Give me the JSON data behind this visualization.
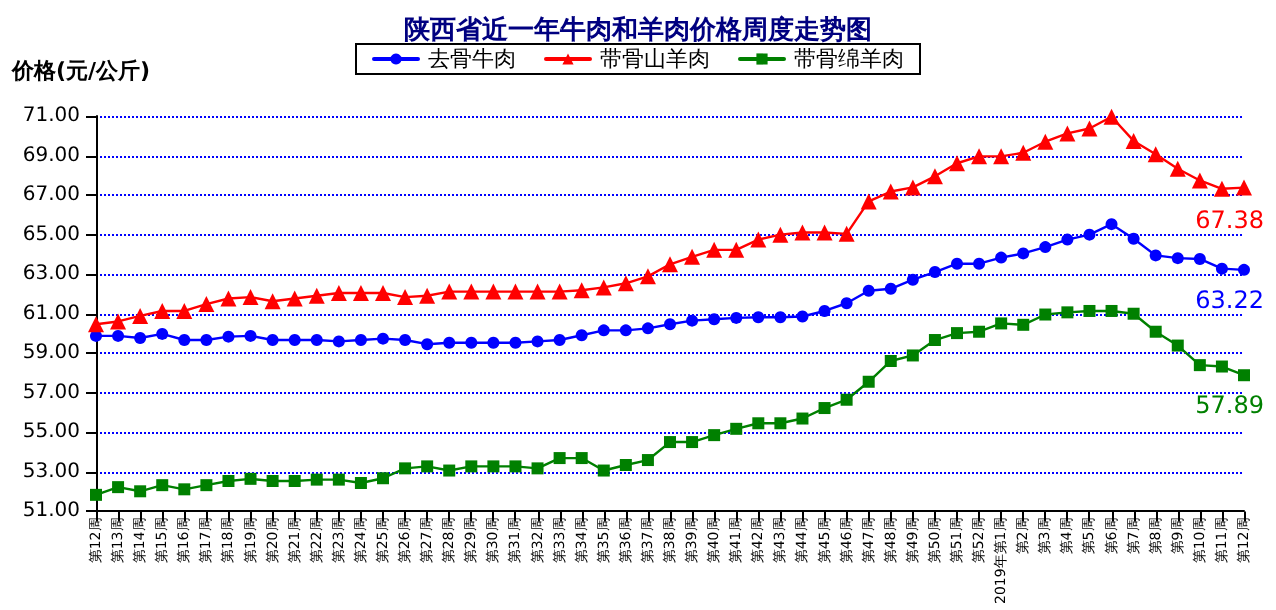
{
  "chart_data": {
    "type": "line",
    "title": "陕西省近一年牛肉和羊肉价格周度走势图",
    "ylabel": "价格(元/公斤)",
    "categories": [
      "第12周",
      "第13周",
      "第14周",
      "第15周",
      "第16周",
      "第17周",
      "第18周",
      "第19周",
      "第20周",
      "第21周",
      "第22周",
      "第23周",
      "第24周",
      "第25周",
      "第26周",
      "第27周",
      "第28周",
      "第29周",
      "第30周",
      "第31周",
      "第32周",
      "第33周",
      "第34周",
      "第35周",
      "第36周",
      "第37周",
      "第38周",
      "第39周",
      "第40周",
      "第41周",
      "第42周",
      "第43周",
      "第44周",
      "第45周",
      "第46周",
      "第47周",
      "第48周",
      "第49周",
      "第50周",
      "第51周",
      "第52周",
      "2019年第1周",
      "第2周",
      "第3周",
      "第4周",
      "第5周",
      "第6周",
      "第7周",
      "第8周",
      "第9周",
      "第10周",
      "第11周",
      "第12周"
    ],
    "series": [
      {
        "name": "去骨牛肉",
        "color": "#0000ff",
        "marker": "circle",
        "values": [
          59.88,
          59.88,
          59.77,
          59.98,
          59.67,
          59.67,
          59.84,
          59.88,
          59.67,
          59.67,
          59.67,
          59.6,
          59.67,
          59.74,
          59.67,
          59.46,
          59.53,
          59.53,
          59.53,
          59.53,
          59.6,
          59.67,
          59.91,
          60.16,
          60.16,
          60.26,
          60.47,
          60.65,
          60.72,
          60.79,
          60.82,
          60.82,
          60.86,
          61.14,
          61.53,
          62.16,
          62.26,
          62.72,
          63.11,
          63.53,
          63.53,
          63.84,
          64.05,
          64.37,
          64.75,
          65.0,
          65.53,
          64.79,
          63.95,
          63.81,
          63.77,
          63.28,
          63.22
        ],
        "value_labels": [
          null,
          null,
          null,
          null,
          null,
          null,
          null,
          null,
          null,
          null,
          null,
          null,
          null,
          null,
          null,
          null,
          null,
          null,
          null,
          null,
          null,
          null,
          null,
          null,
          null,
          null,
          null,
          null,
          null,
          null,
          null,
          null,
          null,
          null,
          null,
          null,
          null,
          null,
          null,
          null,
          null,
          null,
          null,
          null,
          null,
          null,
          null,
          null,
          null,
          null,
          null,
          null,
          "63.22"
        ]
      },
      {
        "name": "带骨山羊肉",
        "color": "#ff0000",
        "marker": "triangle",
        "values": [
          60.47,
          60.61,
          60.89,
          61.14,
          61.14,
          61.49,
          61.77,
          61.84,
          61.63,
          61.77,
          61.91,
          62.05,
          62.05,
          62.05,
          61.84,
          61.91,
          62.12,
          62.12,
          62.12,
          62.12,
          62.12,
          62.12,
          62.19,
          62.33,
          62.54,
          62.89,
          63.5,
          63.88,
          64.23,
          64.23,
          64.75,
          65.0,
          65.11,
          65.11,
          65.04,
          66.68,
          67.18,
          67.39,
          67.95,
          68.61,
          68.96,
          68.96,
          69.14,
          69.7,
          70.12,
          70.37,
          70.96,
          69.74,
          69.07,
          68.33,
          67.74,
          67.32,
          67.38
        ],
        "value_labels": [
          null,
          null,
          null,
          null,
          null,
          null,
          null,
          null,
          null,
          null,
          null,
          null,
          null,
          null,
          null,
          null,
          null,
          null,
          null,
          null,
          null,
          null,
          null,
          null,
          null,
          null,
          null,
          null,
          null,
          null,
          null,
          null,
          null,
          null,
          null,
          null,
          null,
          null,
          null,
          null,
          null,
          null,
          null,
          null,
          null,
          null,
          null,
          null,
          null,
          null,
          null,
          null,
          "67.38"
        ]
      },
      {
        "name": "带骨绵羊肉",
        "color": "#008000",
        "marker": "square",
        "values": [
          51.84,
          52.23,
          52.02,
          52.33,
          52.12,
          52.33,
          52.54,
          52.65,
          52.54,
          52.54,
          52.61,
          52.61,
          52.44,
          52.68,
          53.18,
          53.28,
          53.07,
          53.28,
          53.28,
          53.28,
          53.18,
          53.7,
          53.7,
          53.07,
          53.35,
          53.6,
          54.51,
          54.51,
          54.86,
          55.18,
          55.46,
          55.46,
          55.7,
          56.23,
          56.65,
          57.56,
          58.61,
          58.89,
          59.67,
          60.02,
          60.09,
          60.51,
          60.44,
          60.96,
          61.07,
          61.14,
          61.14,
          61.0,
          60.09,
          59.39,
          58.4,
          58.33,
          57.89
        ],
        "value_labels": [
          null,
          null,
          null,
          null,
          null,
          null,
          null,
          null,
          null,
          null,
          null,
          null,
          null,
          null,
          null,
          null,
          null,
          null,
          null,
          null,
          null,
          null,
          null,
          null,
          null,
          null,
          null,
          null,
          null,
          null,
          null,
          null,
          null,
          null,
          null,
          null,
          null,
          null,
          null,
          null,
          null,
          null,
          null,
          null,
          null,
          null,
          null,
          null,
          null,
          null,
          null,
          null,
          "57.89"
        ]
      }
    ],
    "ylim": [
      51,
      71
    ],
    "yticks": [
      {
        "value": 51,
        "label": "51.00"
      },
      {
        "value": 53,
        "label": "53.00"
      },
      {
        "value": 55,
        "label": "55.00"
      },
      {
        "value": 57,
        "label": "57.00"
      },
      {
        "value": 59,
        "label": "59.00"
      },
      {
        "value": 61,
        "label": "61.00"
      },
      {
        "value": 63,
        "label": "63.00"
      },
      {
        "value": 65,
        "label": "65.00"
      },
      {
        "value": 67,
        "label": "67.00"
      },
      {
        "value": 69,
        "label": "69.00"
      },
      {
        "value": 71,
        "label": "71.00"
      }
    ],
    "grid": "y",
    "legend": "top",
    "line_style": "solid"
  }
}
